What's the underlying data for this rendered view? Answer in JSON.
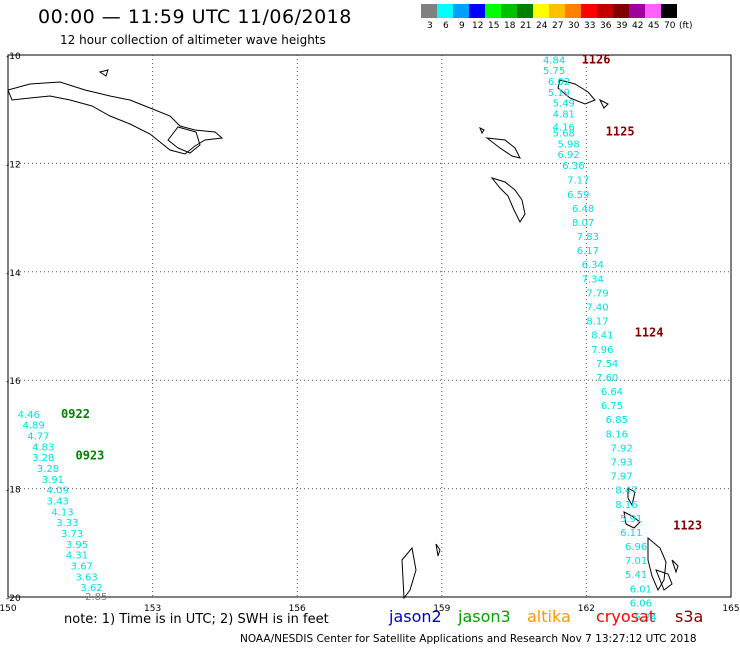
{
  "header": {
    "title": "00:00 — 11:59 UTC 11/06/2018",
    "subtitle": "12 hour collection of altimeter wave heights"
  },
  "legend": {
    "bins": [
      {
        "label": "3",
        "color": "#808080"
      },
      {
        "label": "6",
        "color": "#00ffff"
      },
      {
        "label": "9",
        "color": "#00a0ff"
      },
      {
        "label": "12",
        "color": "#0000ff"
      },
      {
        "label": "15",
        "color": "#00ff00"
      },
      {
        "label": "18",
        "color": "#00c000"
      },
      {
        "label": "21",
        "color": "#008000"
      },
      {
        "label": "24",
        "color": "#ffff00"
      },
      {
        "label": "27",
        "color": "#ffc000"
      },
      {
        "label": "30",
        "color": "#ff8000"
      },
      {
        "label": "33",
        "color": "#ff0000"
      },
      {
        "label": "36",
        "color": "#c00000"
      },
      {
        "label": "39",
        "color": "#800000"
      },
      {
        "label": "42",
        "color": "#a000a0"
      },
      {
        "label": "45",
        "color": "#ff60ff"
      },
      {
        "label": "70",
        "color": "#000000"
      }
    ],
    "unit": "(ft)"
  },
  "axes": {
    "lon_ticks": [
      "150",
      "153",
      "156",
      "159",
      "162",
      "165"
    ],
    "lat_ticks": [
      "-10",
      "-12",
      "-14",
      "-16",
      "-18",
      "-20"
    ]
  },
  "chart_data": {
    "type": "scatter",
    "x_range": [
      150,
      165
    ],
    "y_range": [
      -20,
      -10
    ],
    "tracks": [
      {
        "color": "#00e0e0",
        "times": [
          {
            "label": "1126",
            "lon": 161.9,
            "lat": -10.08
          },
          {
            "label": "1125",
            "lon": 162.4,
            "lat": -11.41
          },
          {
            "label": "1124",
            "lon": 163.0,
            "lat": -15.12
          },
          {
            "label": "1123",
            "lon": 163.8,
            "lat": -18.68
          }
        ],
        "points": [
          {
            "lon": 161.1,
            "lat": -10.08,
            "value": "4.84"
          },
          {
            "lon": 161.1,
            "lat": -10.28,
            "value": "5.75"
          },
          {
            "lon": 161.2,
            "lat": -10.48,
            "value": "6.02"
          },
          {
            "lon": 161.2,
            "lat": -10.68,
            "value": "5.19"
          },
          {
            "lon": 161.3,
            "lat": -10.88,
            "value": "5.49"
          },
          {
            "lon": 161.3,
            "lat": -11.08,
            "value": "4.81"
          },
          {
            "lon": 161.3,
            "lat": -11.32,
            "value": "4.16"
          },
          {
            "lon": 161.3,
            "lat": -11.43,
            "value": "5.68"
          },
          {
            "lon": 161.4,
            "lat": -11.63,
            "value": "5.98"
          },
          {
            "lon": 161.4,
            "lat": -11.83,
            "value": "6.92"
          },
          {
            "lon": 161.5,
            "lat": -12.03,
            "value": "6.36"
          },
          {
            "lon": 161.6,
            "lat": -12.3,
            "value": "7.17"
          },
          {
            "lon": 161.6,
            "lat": -12.56,
            "value": "6.59"
          },
          {
            "lon": 161.7,
            "lat": -12.82,
            "value": "6.48"
          },
          {
            "lon": 161.7,
            "lat": -13.08,
            "value": "8.07"
          },
          {
            "lon": 161.8,
            "lat": -13.34,
            "value": "7.83"
          },
          {
            "lon": 161.8,
            "lat": -13.6,
            "value": "6.17"
          },
          {
            "lon": 161.9,
            "lat": -13.86,
            "value": "6.34"
          },
          {
            "lon": 161.9,
            "lat": -14.12,
            "value": "7.34"
          },
          {
            "lon": 162.0,
            "lat": -14.38,
            "value": "7.79"
          },
          {
            "lon": 162.0,
            "lat": -14.64,
            "value": "7.40"
          },
          {
            "lon": 162.0,
            "lat": -14.9,
            "value": "8.17"
          },
          {
            "lon": 162.1,
            "lat": -15.16,
            "value": "8.41"
          },
          {
            "lon": 162.1,
            "lat": -15.42,
            "value": "7.96"
          },
          {
            "lon": 162.2,
            "lat": -15.68,
            "value": "7.54"
          },
          {
            "lon": 162.2,
            "lat": -15.94,
            "value": "7.60"
          },
          {
            "lon": 162.3,
            "lat": -16.2,
            "value": "6.64"
          },
          {
            "lon": 162.3,
            "lat": -16.46,
            "value": "6.75"
          },
          {
            "lon": 162.4,
            "lat": -16.72,
            "value": "6.85"
          },
          {
            "lon": 162.4,
            "lat": -16.98,
            "value": "8.16"
          },
          {
            "lon": 162.5,
            "lat": -17.24,
            "value": "7.92"
          },
          {
            "lon": 162.5,
            "lat": -17.5,
            "value": "7.93"
          },
          {
            "lon": 162.5,
            "lat": -17.76,
            "value": "7.97"
          },
          {
            "lon": 162.6,
            "lat": -18.02,
            "value": "8.47"
          },
          {
            "lon": 162.6,
            "lat": -18.28,
            "value": "8.16"
          },
          {
            "lon": 162.7,
            "lat": -18.54,
            "value": "5.91"
          },
          {
            "lon": 162.7,
            "lat": -18.8,
            "value": "6.11"
          },
          {
            "lon": 162.8,
            "lat": -19.06,
            "value": "6.96"
          },
          {
            "lon": 162.8,
            "lat": -19.32,
            "value": "7.01"
          },
          {
            "lon": 162.8,
            "lat": -19.58,
            "value": "5.41"
          },
          {
            "lon": 162.9,
            "lat": -19.84,
            "value": "6.01"
          },
          {
            "lon": 162.9,
            "lat": -20.1,
            "value": "6.06"
          },
          {
            "lon": 163.0,
            "lat": -20.36,
            "value": "5.24"
          }
        ]
      },
      {
        "color": "#00e0e0",
        "times": [
          {
            "label": "0922",
            "lon": 151.1,
            "lat": -16.62
          },
          {
            "label": "0923",
            "lon": 151.4,
            "lat": -17.39
          }
        ],
        "points": [
          {
            "lon": 150.2,
            "lat": -16.62,
            "value": "4.46"
          },
          {
            "lon": 150.3,
            "lat": -16.82,
            "value": "4.89"
          },
          {
            "lon": 150.4,
            "lat": -17.02,
            "value": "4.77"
          },
          {
            "lon": 150.5,
            "lat": -17.22,
            "value": "4.83"
          },
          {
            "lon": 150.5,
            "lat": -17.42,
            "value": "3.28"
          },
          {
            "lon": 150.6,
            "lat": -17.62,
            "value": "3.28"
          },
          {
            "lon": 150.7,
            "lat": -17.82,
            "value": "3.91"
          },
          {
            "lon": 150.8,
            "lat": -18.02,
            "value": "4.09"
          },
          {
            "lon": 150.8,
            "lat": -18.22,
            "value": "3.43"
          },
          {
            "lon": 150.9,
            "lat": -18.42,
            "value": "4.13"
          },
          {
            "lon": 151.0,
            "lat": -18.62,
            "value": "3.33"
          },
          {
            "lon": 151.1,
            "lat": -18.82,
            "value": "3.73"
          },
          {
            "lon": 151.2,
            "lat": -19.02,
            "value": "3.95"
          },
          {
            "lon": 151.2,
            "lat": -19.22,
            "value": "4.31"
          },
          {
            "lon": 151.3,
            "lat": -19.42,
            "value": "3.67"
          },
          {
            "lon": 151.4,
            "lat": -19.62,
            "value": "3.63"
          },
          {
            "lon": 151.5,
            "lat": -19.82,
            "value": "3.62"
          },
          {
            "lon": 151.6,
            "lat": -19.98,
            "value": "2.85",
            "color": "#808080"
          }
        ]
      }
    ]
  },
  "footer": {
    "note": "note: 1) Time is in UTC; 2) SWH is in feet",
    "satellites": [
      {
        "name": "jason2",
        "color": "#0000cc"
      },
      {
        "name": "jason3",
        "color": "#00a000"
      },
      {
        "name": "altika",
        "color": "#ff9900"
      },
      {
        "name": "cryosat",
        "color": "#ff0000"
      },
      {
        "name": "s3a",
        "color": "#800000"
      }
    ],
    "credit": "NOAA/NESDIS Center for Satellite Applications and Research    Nov  7 13:27:12 UTC 2018"
  }
}
